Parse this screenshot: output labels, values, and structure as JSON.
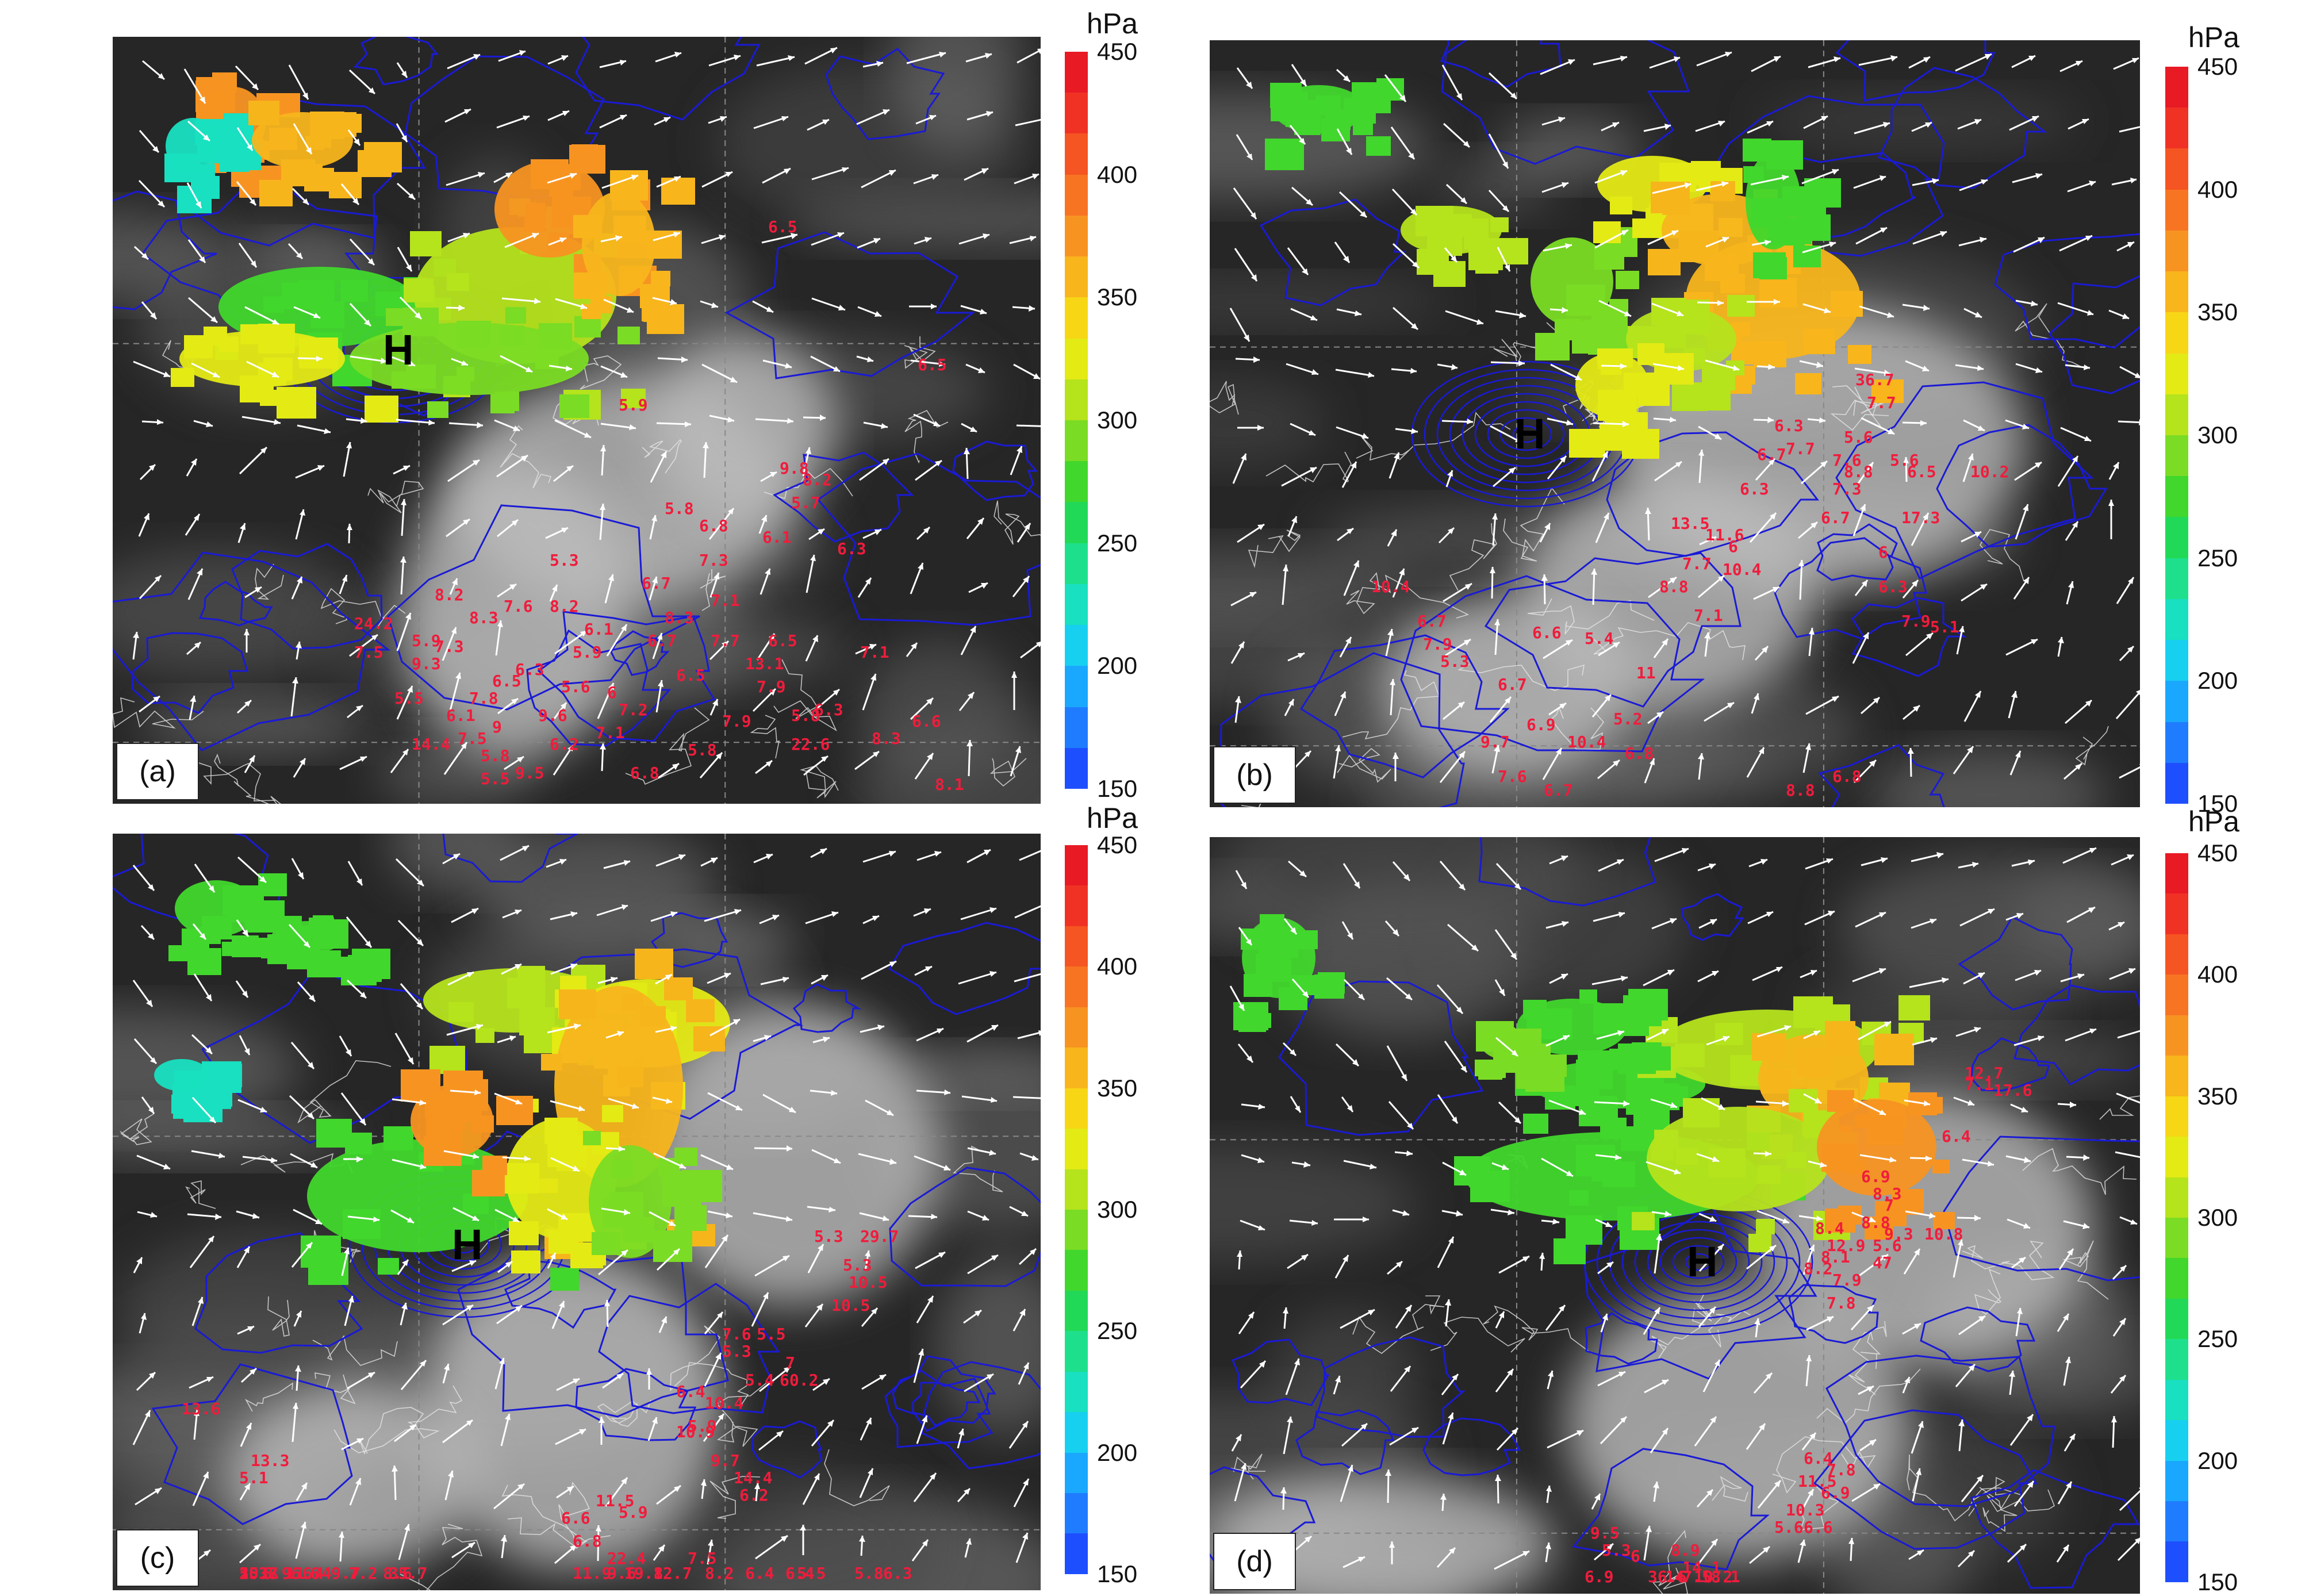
{
  "colorbar": {
    "unit": "hPa",
    "ticks": [
      "450",
      "400",
      "350",
      "300",
      "250",
      "200",
      "150"
    ],
    "colors": [
      "#1e4fff",
      "#1f7cff",
      "#1aa8ff",
      "#17d0f0",
      "#18e0c0",
      "#1ee08c",
      "#22d957",
      "#41d72c",
      "#7adc24",
      "#b5e31c",
      "#e4ea14",
      "#f7d616",
      "#f8b51c",
      "#f79421",
      "#f77423",
      "#f55522",
      "#f03224",
      "#e81a24"
    ]
  },
  "panels": [
    {
      "label": "(a)",
      "high_label": "H",
      "values": [
        "6.5",
        "5.9",
        "6.5",
        "5.8",
        "6.8",
        "6.1",
        "6.3",
        "5.3",
        "6.7",
        "7.1",
        "7.6",
        "6.1",
        "8.2",
        "24.2",
        "5.9",
        "9.3",
        "6.5",
        "8.3",
        "7.3",
        "8.2",
        "5.7",
        "9.8",
        "7.1",
        "5.6",
        "7.8",
        "6.1",
        "5.8",
        "6.6",
        "8.1",
        "9",
        "5.8",
        "8.2",
        "7.5",
        "7.9",
        "6",
        "5.9",
        "7.5",
        "5.5",
        "6.3",
        "7.2",
        "8.3",
        "7.3",
        "6.5",
        "9.6",
        "6.7",
        "7.9",
        "6.3",
        "6.5",
        "7.1",
        "5.8",
        "22.6",
        "8.3",
        "7.7",
        "13.1",
        "6.2",
        "14.4",
        "9.5",
        "5.5",
        "6.8"
      ]
    },
    {
      "label": "(b)",
      "high_label": "H",
      "values": [
        "36.7",
        "7.7",
        "6.3",
        "5.6",
        "7.7",
        "6.7",
        "7.6",
        "5.6",
        "8.8",
        "6.5",
        "10.2",
        "6.3",
        "7.3",
        "6.7",
        "17.3",
        "13.5",
        "11.6",
        "6",
        "7.7",
        "10.4",
        "6",
        "8.8",
        "6.3",
        "10.4",
        "7.1",
        "7.9",
        "5.1",
        "6.7",
        "7.9",
        "6.6",
        "5.4",
        "5.3",
        "6.7",
        "11",
        "5.2",
        "6.9",
        "10.4",
        "6.8",
        "9.7",
        "7.6",
        "6.7",
        "8.8",
        "6.8"
      ]
    },
    {
      "label": "(c)",
      "high_label": "H",
      "values": [
        "5.3",
        "29.7",
        "5.3",
        "10.5",
        "10.5",
        "7.6",
        "5.5",
        "5.3",
        "7",
        "5.4",
        "60.2",
        "6.4",
        "10.4",
        "5.9",
        "10.9",
        "9.7",
        "14.4",
        "6.2",
        "13.6",
        "13.3",
        "5.1",
        "11.5",
        "5.9",
        "6.6",
        "6.8",
        "22.4",
        "7.5",
        "8.2",
        "19.8",
        "9.6",
        "11.9",
        "12.7",
        "6.9",
        "5.3",
        "11.4",
        "6.6",
        "9.7",
        "7.2",
        "15.8",
        "8.6",
        "6.4",
        "5.5",
        "6.4",
        "20.7",
        "6.4",
        "35.7",
        "6.3",
        "5.8"
      ]
    },
    {
      "label": "(d)",
      "high_label": "H",
      "values": [
        "12.7",
        "7.1",
        "17.6",
        "6.4",
        "6.9",
        "8.3",
        "7",
        "8.8",
        "8.4",
        "9.3",
        "10.8",
        "12.9",
        "5.6",
        "8.1",
        "47",
        "8.2",
        "7.9",
        "7.8",
        "6.4",
        "7.8",
        "11.5",
        "6.9",
        "10.3",
        "5.6",
        "6.6",
        "9.5",
        "5.3",
        "6",
        "8.9",
        "14.1",
        "10.2",
        "6.9",
        "36.6",
        "7.5",
        "14",
        "8.1"
      ]
    }
  ]
}
